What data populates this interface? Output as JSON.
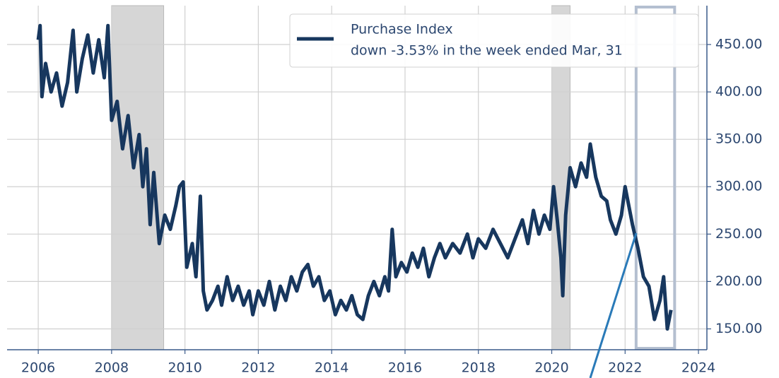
{
  "chart_data": {
    "type": "line",
    "series": [
      {
        "name": "Purchase Index",
        "color": "#17375e",
        "x": [
          2006.0,
          2006.05,
          2006.1,
          2006.2,
          2006.35,
          2006.5,
          2006.65,
          2006.8,
          2006.95,
          2007.05,
          2007.2,
          2007.35,
          2007.5,
          2007.65,
          2007.8,
          2007.9,
          2008.0,
          2008.15,
          2008.3,
          2008.45,
          2008.6,
          2008.75,
          2008.85,
          2008.95,
          2009.05,
          2009.15,
          2009.3,
          2009.45,
          2009.6,
          2009.75,
          2009.85,
          2009.95,
          2010.05,
          2010.2,
          2010.3,
          2010.35,
          2010.42,
          2010.5,
          2010.6,
          2010.75,
          2010.9,
          2011.0,
          2011.15,
          2011.3,
          2011.45,
          2011.6,
          2011.75,
          2011.85,
          2012.0,
          2012.15,
          2012.3,
          2012.45,
          2012.6,
          2012.75,
          2012.9,
          2013.05,
          2013.2,
          2013.35,
          2013.5,
          2013.65,
          2013.8,
          2013.95,
          2014.1,
          2014.25,
          2014.4,
          2014.55,
          2014.7,
          2014.85,
          2015.0,
          2015.15,
          2015.3,
          2015.45,
          2015.55,
          2015.65,
          2015.75,
          2015.9,
          2016.05,
          2016.2,
          2016.35,
          2016.5,
          2016.65,
          2016.8,
          2016.95,
          2017.1,
          2017.3,
          2017.5,
          2017.7,
          2017.85,
          2018.0,
          2018.2,
          2018.4,
          2018.6,
          2018.8,
          2019.0,
          2019.2,
          2019.35,
          2019.5,
          2019.65,
          2019.8,
          2019.95,
          2020.05,
          2020.15,
          2020.25,
          2020.3,
          2020.38,
          2020.5,
          2020.65,
          2020.8,
          2020.95,
          2021.05,
          2021.2,
          2021.35,
          2021.5,
          2021.6,
          2021.75,
          2021.9,
          2022.0,
          2022.1,
          2022.2,
          2022.35,
          2022.5,
          2022.65,
          2022.8,
          2022.95,
          2023.05,
          2023.15,
          2023.25
        ],
        "values": [
          455,
          470,
          395,
          430,
          400,
          420,
          385,
          410,
          465,
          400,
          435,
          460,
          420,
          455,
          415,
          470,
          370,
          390,
          340,
          375,
          320,
          355,
          300,
          340,
          260,
          315,
          240,
          270,
          255,
          280,
          300,
          305,
          215,
          240,
          205,
          240,
          290,
          190,
          170,
          180,
          195,
          175,
          205,
          180,
          195,
          175,
          190,
          165,
          190,
          175,
          200,
          170,
          195,
          180,
          205,
          190,
          210,
          218,
          195,
          205,
          180,
          190,
          165,
          180,
          170,
          185,
          165,
          160,
          185,
          200,
          185,
          205,
          190,
          255,
          205,
          220,
          210,
          230,
          215,
          235,
          205,
          225,
          240,
          225,
          240,
          230,
          250,
          225,
          245,
          235,
          255,
          240,
          225,
          245,
          265,
          240,
          275,
          250,
          270,
          255,
          300,
          265,
          225,
          185,
          270,
          320,
          300,
          325,
          310,
          345,
          310,
          290,
          285,
          265,
          250,
          270,
          300,
          280,
          260,
          235,
          205,
          195,
          160,
          180,
          205,
          150,
          170
        ]
      }
    ],
    "legend_note": " down -3.53% in the week ended Mar, 31",
    "shaded_ranges": [
      [
        2008.0,
        2009.42
      ],
      [
        2020.0,
        2020.5
      ]
    ],
    "highlight_range": [
      2022.3,
      2023.35
    ],
    "xlim": [
      2005.15,
      2024.23
    ],
    "xticks": [
      2006,
      2008,
      2010,
      2012,
      2014,
      2016,
      2018,
      2020,
      2022,
      2024
    ],
    "ylim": [
      128,
      491
    ],
    "yticks": [
      {
        "value": 150,
        "label": "150.00"
      },
      {
        "value": 200,
        "label": "200.00"
      },
      {
        "value": 250,
        "label": "250.00"
      },
      {
        "value": 300,
        "label": "300.00"
      },
      {
        "value": 350,
        "label": "350.00"
      },
      {
        "value": 400,
        "label": "400.00"
      },
      {
        "value": 450,
        "label": "450.00"
      }
    ],
    "grid": true
  }
}
